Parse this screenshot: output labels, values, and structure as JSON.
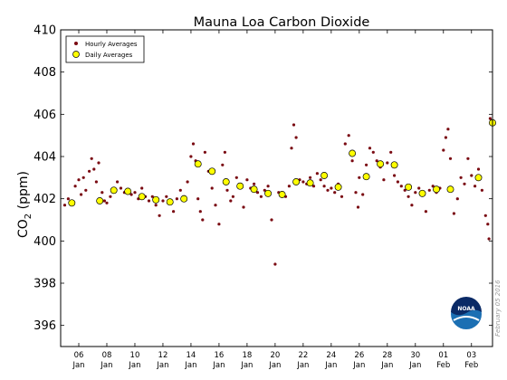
{
  "chart_data": {
    "type": "scatter",
    "title": "Mauna Loa Carbon Dioxide",
    "ylabel": {
      "prefix": "CO",
      "sub": "2",
      "suffix": " (ppm)"
    },
    "xlabel": "",
    "ylim": [
      395,
      410
    ],
    "xlim": [
      "2016-01-04T17:00",
      "2016-02-04T12:00"
    ],
    "yticks": [
      396,
      398,
      400,
      402,
      404,
      406,
      408,
      410
    ],
    "xticks": [
      {
        "at": "2016-01-06",
        "day": "06",
        "month": "Jan"
      },
      {
        "at": "2016-01-08",
        "day": "08",
        "month": "Jan"
      },
      {
        "at": "2016-01-10",
        "day": "10",
        "month": "Jan"
      },
      {
        "at": "2016-01-12",
        "day": "12",
        "month": "Jan"
      },
      {
        "at": "2016-01-14",
        "day": "14",
        "month": "Jan"
      },
      {
        "at": "2016-01-16",
        "day": "16",
        "month": "Jan"
      },
      {
        "at": "2016-01-18",
        "day": "18",
        "month": "Jan"
      },
      {
        "at": "2016-01-20",
        "day": "20",
        "month": "Jan"
      },
      {
        "at": "2016-01-22",
        "day": "22",
        "month": "Jan"
      },
      {
        "at": "2016-01-24",
        "day": "24",
        "month": "Jan"
      },
      {
        "at": "2016-01-26",
        "day": "26",
        "month": "Jan"
      },
      {
        "at": "2016-01-28",
        "day": "28",
        "month": "Jan"
      },
      {
        "at": "2016-01-30",
        "day": "30",
        "month": "Jan"
      },
      {
        "at": "2016-02-01",
        "day": "01",
        "month": "Feb"
      },
      {
        "at": "2016-02-03",
        "day": "03",
        "month": "Feb"
      }
    ],
    "grid": false,
    "legend": {
      "placement": "top-left"
    },
    "colors": {
      "hourly": "#7a0a12",
      "daily_fill": "#ffff00",
      "daily_edge": "#000000",
      "noaa_blue": "#1b6fb3",
      "noaa_dark": "#0a2a66"
    },
    "series": [
      {
        "name": "Hourly Averages",
        "marker": "small-dot",
        "points": [
          [
            "2016-01-05T00:00",
            401.7
          ],
          [
            "2016-01-05T06:00",
            402.0
          ],
          [
            "2016-01-05T12:00",
            401.8
          ],
          [
            "2016-01-05T18:00",
            402.6
          ],
          [
            "2016-01-06T00:00",
            402.9
          ],
          [
            "2016-01-06T04:00",
            402.2
          ],
          [
            "2016-01-06T08:00",
            403.0
          ],
          [
            "2016-01-06T12:00",
            402.4
          ],
          [
            "2016-01-06T18:00",
            403.3
          ],
          [
            "2016-01-06T22:00",
            403.9
          ],
          [
            "2016-01-07T02:00",
            403.4
          ],
          [
            "2016-01-07T06:00",
            402.8
          ],
          [
            "2016-01-07T10:00",
            403.7
          ],
          [
            "2016-01-07T16:00",
            402.3
          ],
          [
            "2016-01-07T20:00",
            401.9
          ],
          [
            "2016-01-08T00:00",
            401.8
          ],
          [
            "2016-01-08T06:00",
            402.1
          ],
          [
            "2016-01-08T12:00",
            402.4
          ],
          [
            "2016-01-08T18:00",
            402.8
          ],
          [
            "2016-01-09T00:00",
            402.5
          ],
          [
            "2016-01-09T06:00",
            402.3
          ],
          [
            "2016-01-09T12:00",
            402.4
          ],
          [
            "2016-01-09T18:00",
            402.2
          ],
          [
            "2016-01-10T00:00",
            402.3
          ],
          [
            "2016-01-10T06:00",
            402.0
          ],
          [
            "2016-01-10T12:00",
            402.5
          ],
          [
            "2016-01-10T18:00",
            402.1
          ],
          [
            "2016-01-11T00:00",
            401.9
          ],
          [
            "2016-01-11T06:00",
            402.1
          ],
          [
            "2016-01-11T12:00",
            401.7
          ],
          [
            "2016-01-11T18:00",
            401.2
          ],
          [
            "2016-01-12T00:00",
            401.9
          ],
          [
            "2016-01-12T06:00",
            402.1
          ],
          [
            "2016-01-12T12:00",
            401.8
          ],
          [
            "2016-01-12T18:00",
            401.4
          ],
          [
            "2016-01-13T00:00",
            402.0
          ],
          [
            "2016-01-13T06:00",
            402.4
          ],
          [
            "2016-01-13T12:00",
            402.1
          ],
          [
            "2016-01-13T18:00",
            402.8
          ],
          [
            "2016-01-14T00:00",
            404.0
          ],
          [
            "2016-01-14T04:00",
            404.6
          ],
          [
            "2016-01-14T08:00",
            403.8
          ],
          [
            "2016-01-14T12:00",
            402.0
          ],
          [
            "2016-01-14T16:00",
            401.4
          ],
          [
            "2016-01-14T20:00",
            401.0
          ],
          [
            "2016-01-15T00:00",
            404.2
          ],
          [
            "2016-01-15T06:00",
            403.3
          ],
          [
            "2016-01-15T12:00",
            402.5
          ],
          [
            "2016-01-15T18:00",
            401.7
          ],
          [
            "2016-01-16T00:00",
            400.8
          ],
          [
            "2016-01-16T06:00",
            403.6
          ],
          [
            "2016-01-16T10:00",
            404.2
          ],
          [
            "2016-01-16T14:00",
            402.4
          ],
          [
            "2016-01-16T20:00",
            401.9
          ],
          [
            "2016-01-17T00:00",
            402.1
          ],
          [
            "2016-01-17T06:00",
            403.0
          ],
          [
            "2016-01-17T12:00",
            402.6
          ],
          [
            "2016-01-17T18:00",
            401.6
          ],
          [
            "2016-01-18T00:00",
            402.9
          ],
          [
            "2016-01-18T06:00",
            402.5
          ],
          [
            "2016-01-18T12:00",
            402.7
          ],
          [
            "2016-01-18T18:00",
            402.3
          ],
          [
            "2016-01-19T00:00",
            402.1
          ],
          [
            "2016-01-19T06:00",
            402.4
          ],
          [
            "2016-01-19T12:00",
            402.6
          ],
          [
            "2016-01-19T18:00",
            401.0
          ],
          [
            "2016-01-20T00:00",
            398.9
          ],
          [
            "2016-01-20T06:00",
            402.3
          ],
          [
            "2016-01-20T12:00",
            402.2
          ],
          [
            "2016-01-20T18:00",
            402.1
          ],
          [
            "2016-01-21T00:00",
            402.6
          ],
          [
            "2016-01-21T04:00",
            404.4
          ],
          [
            "2016-01-21T08:00",
            405.5
          ],
          [
            "2016-01-21T12:00",
            404.9
          ],
          [
            "2016-01-21T18:00",
            402.9
          ],
          [
            "2016-01-22T00:00",
            402.8
          ],
          [
            "2016-01-22T06:00",
            402.7
          ],
          [
            "2016-01-22T12:00",
            403.0
          ],
          [
            "2016-01-22T18:00",
            402.6
          ],
          [
            "2016-01-23T00:00",
            403.2
          ],
          [
            "2016-01-23T06:00",
            402.9
          ],
          [
            "2016-01-23T12:00",
            402.6
          ],
          [
            "2016-01-23T18:00",
            402.4
          ],
          [
            "2016-01-24T00:00",
            402.5
          ],
          [
            "2016-01-24T06:00",
            402.3
          ],
          [
            "2016-01-24T12:00",
            402.7
          ],
          [
            "2016-01-24T18:00",
            402.1
          ],
          [
            "2016-01-25T00:00",
            404.6
          ],
          [
            "2016-01-25T06:00",
            405.0
          ],
          [
            "2016-01-25T12:00",
            403.8
          ],
          [
            "2016-01-25T18:00",
            402.3
          ],
          [
            "2016-01-25T22:00",
            401.6
          ],
          [
            "2016-01-26T00:00",
            403.0
          ],
          [
            "2016-01-26T06:00",
            402.2
          ],
          [
            "2016-01-26T12:00",
            403.6
          ],
          [
            "2016-01-26T18:00",
            404.4
          ],
          [
            "2016-01-27T00:00",
            404.2
          ],
          [
            "2016-01-27T06:00",
            403.8
          ],
          [
            "2016-01-27T12:00",
            403.5
          ],
          [
            "2016-01-27T18:00",
            402.9
          ],
          [
            "2016-01-28T00:00",
            403.7
          ],
          [
            "2016-01-28T06:00",
            404.2
          ],
          [
            "2016-01-28T12:00",
            403.1
          ],
          [
            "2016-01-28T18:00",
            402.8
          ],
          [
            "2016-01-29T00:00",
            402.6
          ],
          [
            "2016-01-29T06:00",
            402.4
          ],
          [
            "2016-01-29T12:00",
            402.1
          ],
          [
            "2016-01-29T18:00",
            401.7
          ],
          [
            "2016-01-30T00:00",
            402.3
          ],
          [
            "2016-01-30T06:00",
            402.5
          ],
          [
            "2016-01-30T12:00",
            402.2
          ],
          [
            "2016-01-30T18:00",
            401.4
          ],
          [
            "2016-01-31T00:00",
            402.4
          ],
          [
            "2016-01-31T06:00",
            402.6
          ],
          [
            "2016-01-31T12:00",
            402.3
          ],
          [
            "2016-01-31T18:00",
            402.5
          ],
          [
            "2016-02-01T00:00",
            404.3
          ],
          [
            "2016-02-01T04:00",
            404.9
          ],
          [
            "2016-02-01T08:00",
            405.3
          ],
          [
            "2016-02-01T12:00",
            403.9
          ],
          [
            "2016-02-01T18:00",
            401.3
          ],
          [
            "2016-02-02T00:00",
            402.0
          ],
          [
            "2016-02-02T06:00",
            403.0
          ],
          [
            "2016-02-02T12:00",
            402.7
          ],
          [
            "2016-02-02T18:00",
            403.9
          ],
          [
            "2016-02-03T00:00",
            403.1
          ],
          [
            "2016-02-03T06:00",
            402.6
          ],
          [
            "2016-02-03T12:00",
            403.4
          ],
          [
            "2016-02-03T18:00",
            402.4
          ],
          [
            "2016-02-04T00:00",
            401.2
          ],
          [
            "2016-02-04T04:00",
            400.8
          ],
          [
            "2016-02-04T06:00",
            400.1
          ],
          [
            "2016-02-04T08:00",
            405.8
          ],
          [
            "2016-02-04T10:00",
            405.6
          ]
        ]
      },
      {
        "name": "Daily Averages",
        "marker": "large-circle",
        "points": [
          [
            "2016-01-05T12:00",
            401.8
          ],
          [
            "2016-01-07T12:00",
            401.9
          ],
          [
            "2016-01-08T12:00",
            402.4
          ],
          [
            "2016-01-09T12:00",
            402.35
          ],
          [
            "2016-01-10T12:00",
            402.1
          ],
          [
            "2016-01-11T12:00",
            401.95
          ],
          [
            "2016-01-12T12:00",
            401.85
          ],
          [
            "2016-01-13T12:00",
            402.0
          ],
          [
            "2016-01-14T12:00",
            403.65
          ],
          [
            "2016-01-15T12:00",
            403.3
          ],
          [
            "2016-01-16T12:00",
            402.8
          ],
          [
            "2016-01-17T12:00",
            402.6
          ],
          [
            "2016-01-18T12:00",
            402.45
          ],
          [
            "2016-01-19T12:00",
            402.25
          ],
          [
            "2016-01-20T12:00",
            402.2
          ],
          [
            "2016-01-21T12:00",
            402.8
          ],
          [
            "2016-01-22T12:00",
            402.75
          ],
          [
            "2016-01-23T12:00",
            403.1
          ],
          [
            "2016-01-24T12:00",
            402.55
          ],
          [
            "2016-01-25T12:00",
            404.15
          ],
          [
            "2016-01-26T12:00",
            403.05
          ],
          [
            "2016-01-27T12:00",
            403.65
          ],
          [
            "2016-01-28T12:00",
            403.6
          ],
          [
            "2016-01-29T12:00",
            402.55
          ],
          [
            "2016-01-30T12:00",
            402.25
          ],
          [
            "2016-01-31T12:00",
            402.45
          ],
          [
            "2016-02-01T12:00",
            402.45
          ],
          [
            "2016-02-03T12:00",
            403.0
          ],
          [
            "2016-02-04T12:00",
            405.6
          ]
        ]
      }
    ]
  },
  "watermark": "February 05 2016",
  "logo": {
    "text": "NOAA"
  }
}
